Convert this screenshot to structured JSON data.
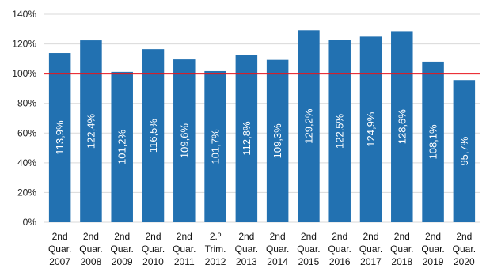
{
  "chart_data": {
    "type": "bar",
    "categories": [
      [
        "2nd",
        "Quar.",
        "2007"
      ],
      [
        "2nd",
        "Quar.",
        "2008"
      ],
      [
        "2nd",
        "Quar.",
        "2009"
      ],
      [
        "2nd",
        "Quar.",
        "2010"
      ],
      [
        "2nd",
        "Quar.",
        "2011"
      ],
      [
        "2.º",
        "Trim.",
        "2012"
      ],
      [
        "2nd",
        "Quar.",
        "2013"
      ],
      [
        "2nd",
        "Quar.",
        "2014"
      ],
      [
        "2nd",
        "Quar.",
        "2015"
      ],
      [
        "2nd",
        "Quar.",
        "2016"
      ],
      [
        "2nd",
        "Quar.",
        "2017"
      ],
      [
        "2nd",
        "Quar.",
        "2018"
      ],
      [
        "2nd",
        "Quar.",
        "2019"
      ],
      [
        "2nd",
        "Quar.",
        "2020"
      ]
    ],
    "values": [
      113.9,
      122.4,
      101.2,
      116.5,
      109.6,
      101.7,
      112.8,
      109.3,
      129.2,
      122.5,
      124.9,
      128.6,
      108.1,
      95.7
    ],
    "data_labels": [
      "113,9%",
      "122,4%",
      "101,2%",
      "116,5%",
      "109,6%",
      "101,7%",
      "112,8%",
      "109,3%",
      "129,2%",
      "122,5%",
      "124,9%",
      "128,6%",
      "108,1%",
      "95,7%"
    ],
    "ylim": [
      0,
      140
    ],
    "yticks": [
      0,
      20,
      40,
      60,
      80,
      100,
      120,
      140
    ],
    "ytick_labels": [
      "0%",
      "20%",
      "40%",
      "60%",
      "80%",
      "100%",
      "120%",
      "140%"
    ],
    "reference_line": 100,
    "grid": true,
    "title": "",
    "xlabel": "",
    "ylabel": "",
    "colors": {
      "bar": "#2271b1",
      "reference_line": "#e8141b",
      "grid": "#d9d9d9",
      "label": "#ffffff"
    }
  }
}
